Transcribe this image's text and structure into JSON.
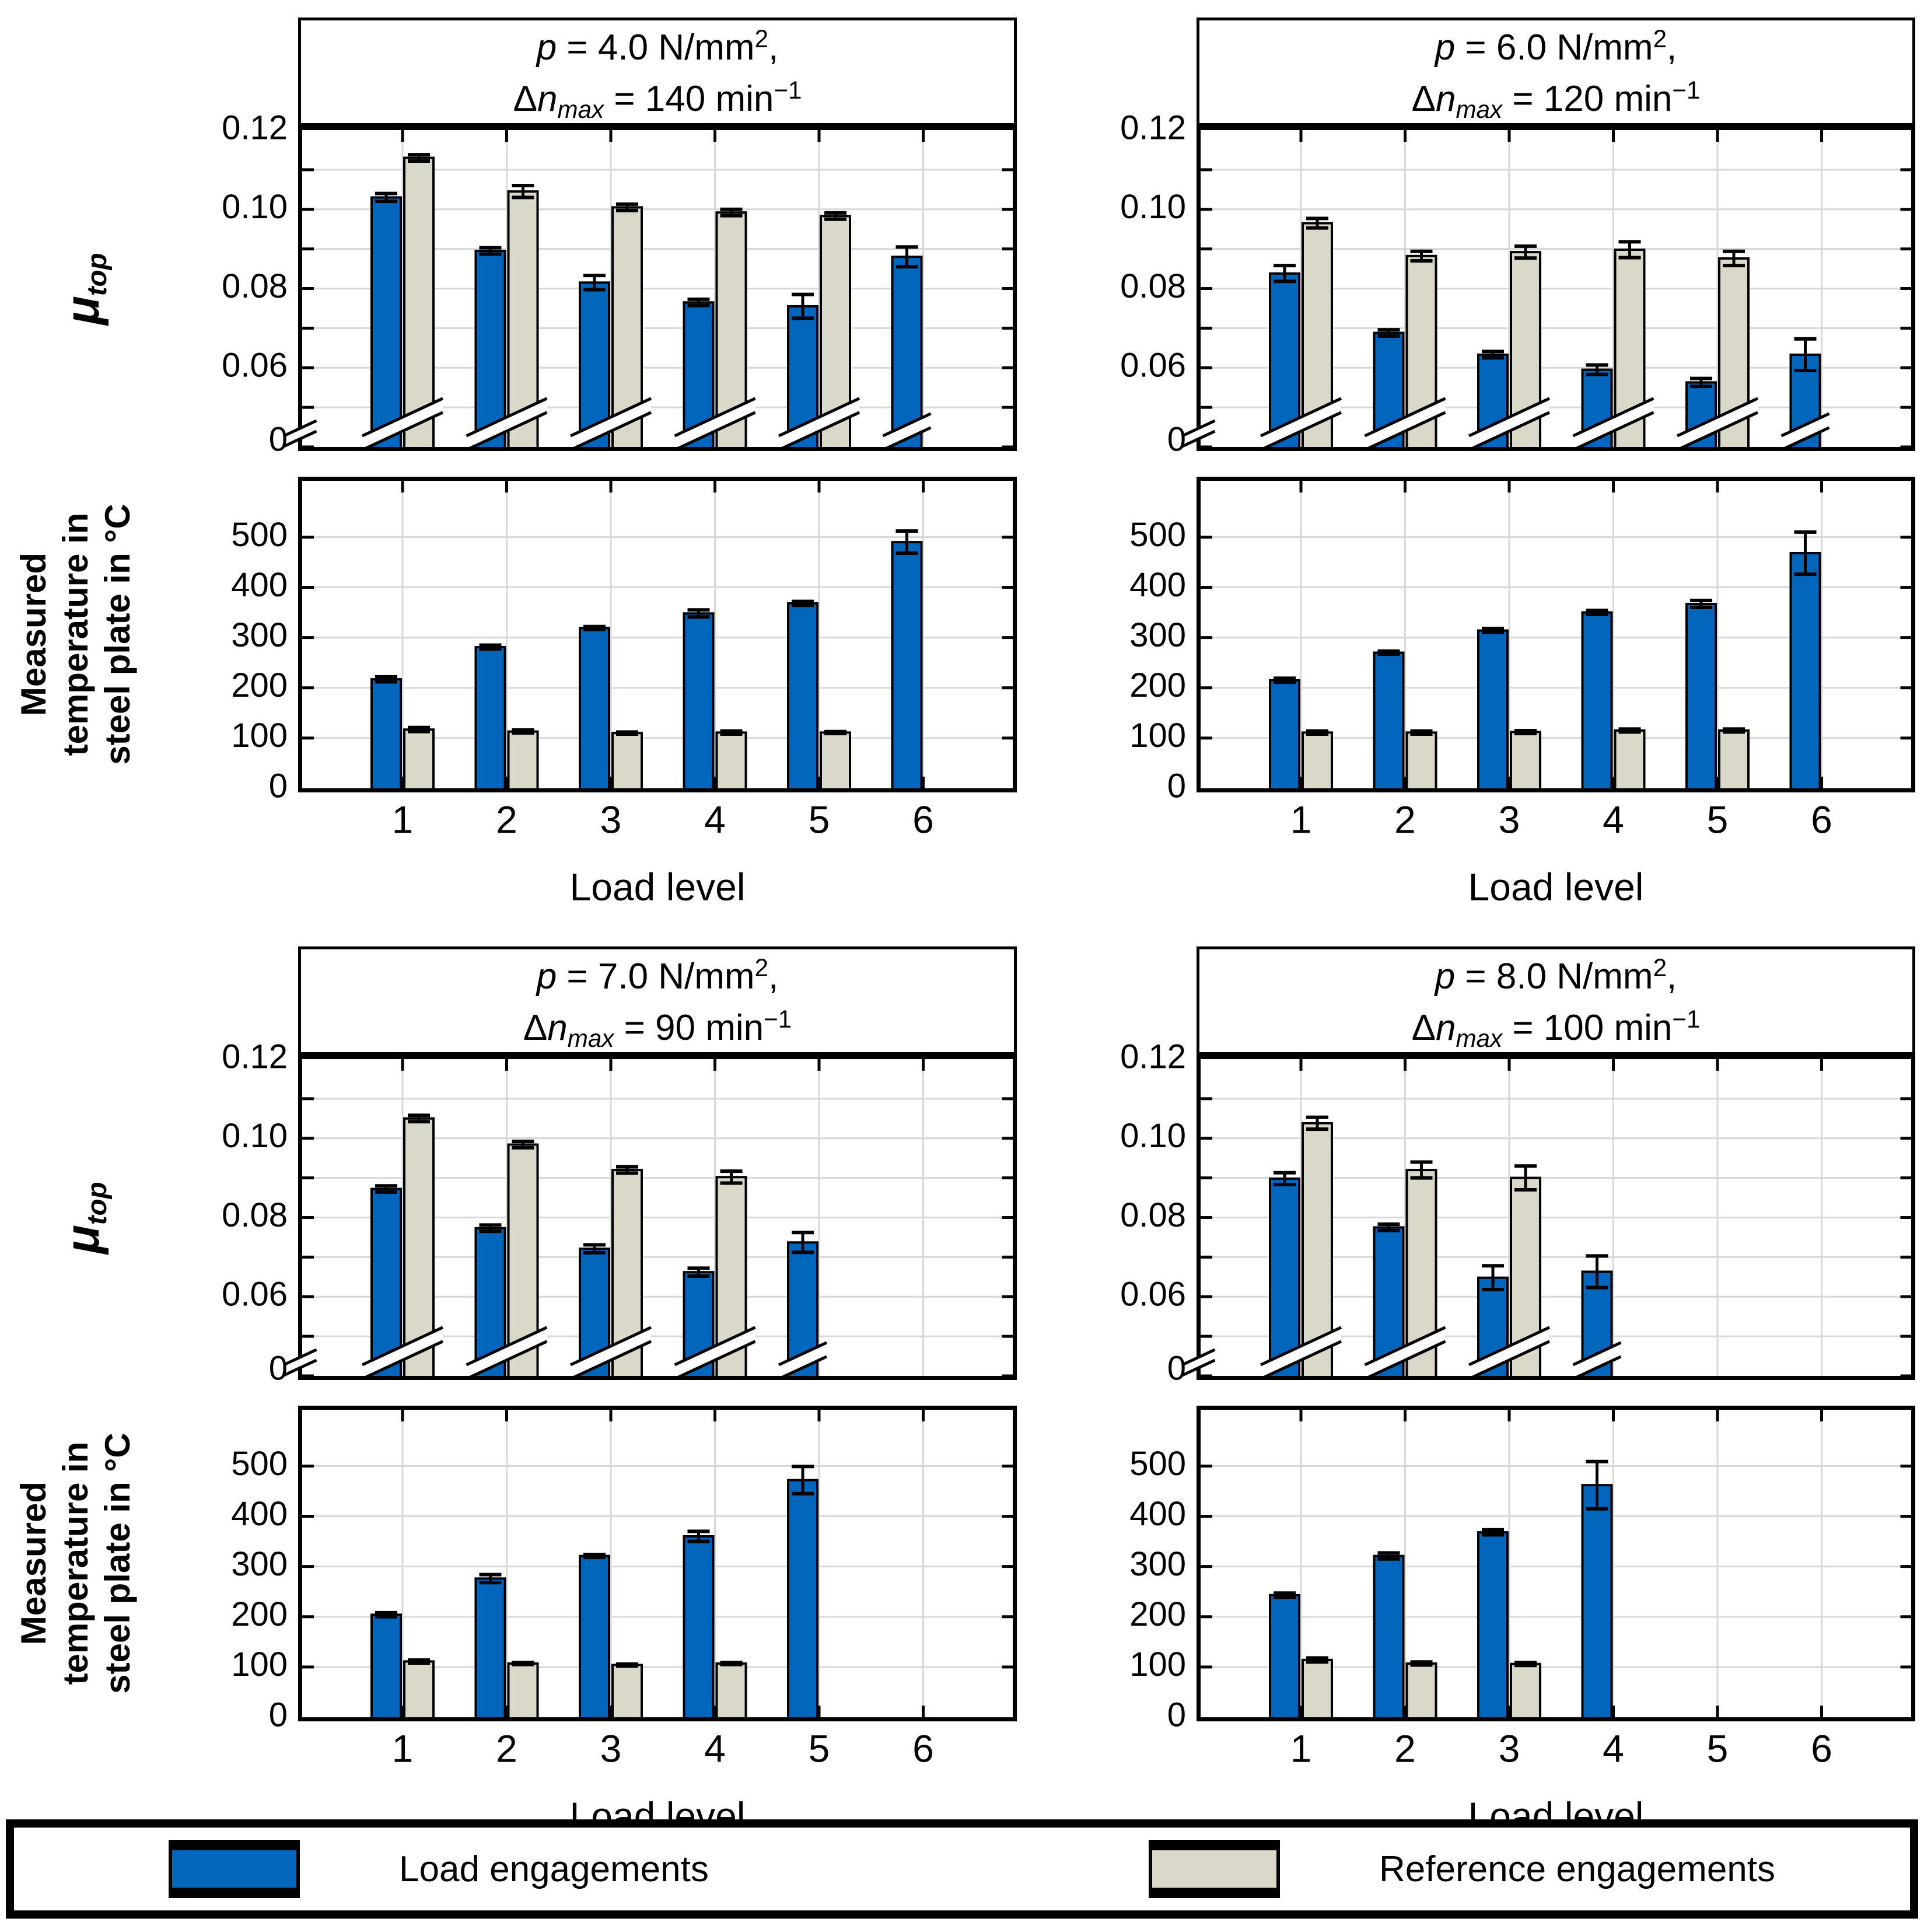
{
  "colors": {
    "load": "#0266BC",
    "reference": "#DAD8C9",
    "grid": "#D8D8D8",
    "axis": "#000000",
    "background": "#FFFFFF"
  },
  "legend": {
    "items": [
      {
        "label": "Load engagements",
        "color": "load"
      },
      {
        "label": "Reference engagements",
        "color": "reference"
      }
    ]
  },
  "axes": {
    "x_label": "Load level",
    "x_ticks": [
      "1",
      "2",
      "3",
      "4",
      "5",
      "6"
    ],
    "mu_label": {
      "base": "μ",
      "sub": "top"
    },
    "mu_axis": {
      "range": [
        0.04,
        0.12
      ],
      "grid_step": 0.01,
      "tick_values": [
        0.12,
        0.1,
        0.08,
        0.06
      ],
      "tick_labels": [
        "0.12",
        "0.10",
        "0.08",
        "0.06"
      ],
      "zero_label": "0",
      "broken_axis": true
    },
    "temp_label_lines": [
      "Measured",
      "temperature in",
      "steel plate in °C"
    ],
    "temp_axis": {
      "range": [
        0,
        612
      ],
      "grid_step": 100,
      "tick_values": [
        500,
        400,
        300,
        200,
        100,
        0
      ],
      "tick_labels": [
        "500",
        "400",
        "300",
        "200",
        "100",
        "0"
      ]
    }
  },
  "chart_data": [
    {
      "panel": "top-left",
      "title_lines": [
        [
          {
            "t": "p",
            "s": "i"
          },
          {
            "t": " = 4.0 N/mm"
          },
          {
            "t": "2",
            "s": "sup"
          },
          {
            "t": ","
          }
        ],
        [
          {
            "t": "Δ"
          },
          {
            "t": "n",
            "s": "i"
          },
          {
            "t": "max",
            "s": "isub"
          },
          {
            "t": " = 140 min"
          },
          {
            "t": "−1",
            "s": "sup"
          }
        ]
      ],
      "mu": {
        "type": "bar",
        "series": [
          {
            "name": "Load engagements",
            "values": [
              0.103,
              0.0895,
              0.0815,
              0.0765,
              0.0755,
              0.088
            ],
            "errors": [
              0.001,
              0.0008,
              0.0018,
              0.0008,
              0.003,
              0.0025
            ]
          },
          {
            "name": "Reference engagements",
            "values": [
              0.113,
              0.1045,
              0.1005,
              0.0992,
              0.0983,
              null
            ],
            "errors": [
              0.0008,
              0.0015,
              0.0008,
              0.0008,
              0.0008,
              null
            ]
          }
        ]
      },
      "temp": {
        "type": "bar",
        "series": [
          {
            "name": "Load engagements",
            "values": [
              217,
              281,
              319,
              348,
              368,
              490
            ],
            "errors": [
              5,
              4,
              3,
              7,
              4,
              22
            ]
          },
          {
            "name": "Reference engagements",
            "values": [
              117,
              113,
              110,
              111,
              111,
              null
            ],
            "errors": [
              4,
              3,
              2,
              3,
              2,
              null
            ]
          }
        ]
      }
    },
    {
      "panel": "top-right",
      "title_lines": [
        [
          {
            "t": "p",
            "s": "i"
          },
          {
            "t": " = 6.0 N/mm"
          },
          {
            "t": "2",
            "s": "sup"
          },
          {
            "t": ","
          }
        ],
        [
          {
            "t": "Δ"
          },
          {
            "t": "n",
            "s": "i"
          },
          {
            "t": "max",
            "s": "isub"
          },
          {
            "t": " = 120 min"
          },
          {
            "t": "−1",
            "s": "sup"
          }
        ]
      ],
      "mu": {
        "type": "bar",
        "series": [
          {
            "name": "Load engagements",
            "values": [
              0.0838,
              0.0688,
              0.0633,
              0.0595,
              0.0563,
              0.0633
            ],
            "errors": [
              0.002,
              0.0008,
              0.0008,
              0.0012,
              0.001,
              0.004
            ]
          },
          {
            "name": "Reference engagements",
            "values": [
              0.0965,
              0.0882,
              0.0892,
              0.0898,
              0.0876,
              null
            ],
            "errors": [
              0.0012,
              0.0012,
              0.0015,
              0.002,
              0.0018,
              null
            ]
          }
        ]
      },
      "temp": {
        "type": "bar",
        "series": [
          {
            "name": "Load engagements",
            "values": [
              215,
              270,
              314,
              350,
              367,
              468
            ],
            "errors": [
              4,
              3,
              4,
              4,
              7,
              42
            ]
          },
          {
            "name": "Reference engagements",
            "values": [
              111,
              111,
              112,
              115,
              115,
              null
            ],
            "errors": [
              3,
              3,
              3,
              3,
              3,
              null
            ]
          }
        ]
      }
    },
    {
      "panel": "bottom-left",
      "title_lines": [
        [
          {
            "t": "p",
            "s": "i"
          },
          {
            "t": " = 7.0 N/mm"
          },
          {
            "t": "2",
            "s": "sup"
          },
          {
            "t": ","
          }
        ],
        [
          {
            "t": "Δ"
          },
          {
            "t": "n",
            "s": "i"
          },
          {
            "t": "max",
            "s": "isub"
          },
          {
            "t": " = 90 min"
          },
          {
            "t": "−1",
            "s": "sup"
          }
        ]
      ],
      "mu": {
        "type": "bar",
        "series": [
          {
            "name": "Load engagements",
            "values": [
              0.0872,
              0.0773,
              0.0721,
              0.0662,
              0.0737,
              null
            ],
            "errors": [
              0.0008,
              0.0008,
              0.001,
              0.001,
              0.0025,
              null
            ]
          },
          {
            "name": "Reference engagements",
            "values": [
              0.105,
              0.0984,
              0.092,
              0.0902,
              null,
              null
            ],
            "errors": [
              0.0008,
              0.0008,
              0.0008,
              0.0015,
              null,
              null
            ]
          }
        ]
      },
      "temp": {
        "type": "bar",
        "series": [
          {
            "name": "Load engagements",
            "values": [
              204,
              276,
              321,
              360,
              472,
              null
            ],
            "errors": [
              4,
              8,
              3,
              10,
              27,
              null
            ]
          },
          {
            "name": "Reference engagements",
            "values": [
              111,
              107,
              104,
              107,
              null,
              null
            ],
            "errors": [
              3,
              2,
              2,
              2,
              null,
              null
            ]
          }
        ]
      }
    },
    {
      "panel": "bottom-right",
      "title_lines": [
        [
          {
            "t": "p",
            "s": "i"
          },
          {
            "t": " = 8.0 N/mm"
          },
          {
            "t": "2",
            "s": "sup"
          },
          {
            "t": ","
          }
        ],
        [
          {
            "t": "Δ"
          },
          {
            "t": "n",
            "s": "i"
          },
          {
            "t": "max",
            "s": "isub"
          },
          {
            "t": " = 100 min"
          },
          {
            "t": "−1",
            "s": "sup"
          }
        ]
      ],
      "mu": {
        "type": "bar",
        "series": [
          {
            "name": "Load engagements",
            "values": [
              0.0898,
              0.0775,
              0.0648,
              0.0663,
              null,
              null
            ],
            "errors": [
              0.0015,
              0.0008,
              0.003,
              0.004,
              null,
              null
            ]
          },
          {
            "name": "Reference engagements",
            "values": [
              0.1038,
              0.092,
              0.09,
              null,
              null,
              null
            ],
            "errors": [
              0.0015,
              0.002,
              0.003,
              null,
              null,
              null
            ]
          }
        ]
      },
      "temp": {
        "type": "bar",
        "series": [
          {
            "name": "Load engagements",
            "values": [
              243,
              321,
              368,
              462,
              null,
              null
            ],
            "errors": [
              4,
              6,
              5,
              47,
              null,
              null
            ]
          },
          {
            "name": "Reference engagements",
            "values": [
              114,
              107,
              106,
              null,
              null,
              null
            ],
            "errors": [
              4,
              3,
              3,
              null,
              null,
              null
            ]
          }
        ]
      }
    }
  ]
}
